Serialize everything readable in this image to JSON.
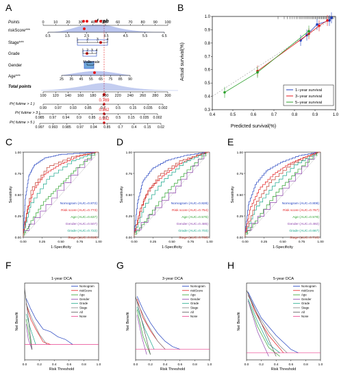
{
  "panels": {
    "A": "A",
    "B": "B",
    "C": "C",
    "D": "D",
    "E": "E",
    "F": "F",
    "G": "G",
    "H": "H"
  },
  "nomogram": {
    "title": "f cph",
    "rows": {
      "points": "Points",
      "riskscore": "riskScore***",
      "stage": "Stage***",
      "grade": "Grade",
      "gender": "Gender",
      "age": "Age***",
      "total": "Total points",
      "p1": "Pr( futime > 1 )",
      "p3": "Pr( futime > 3 )",
      "p5": "Pr( futime > 5 )"
    },
    "points_ticks": [
      "0",
      "10",
      "20",
      "30",
      "40",
      "50",
      "60",
      "70",
      "80",
      "90",
      "100"
    ],
    "riskscore_ticks": [
      "0.5",
      "1.5",
      "2.5",
      "3.5",
      "4.5",
      "5.5",
      "6.5"
    ],
    "stage_ticks": [
      "1",
      "2",
      "3",
      "4"
    ],
    "grade_ticks": [
      "1",
      "2",
      "3",
      "4"
    ],
    "gender_ticks": [
      "Male",
      "Female"
    ],
    "age_ticks": [
      "25",
      "35",
      "45",
      "55",
      "65",
      "75",
      "85",
      "90"
    ],
    "total_ticks": [
      "100",
      "120",
      "140",
      "160",
      "180",
      "200",
      "220",
      "240",
      "260",
      "280",
      "300"
    ],
    "p1_ticks": [
      "0.99",
      "0.97",
      "0.93",
      "0.85",
      "0.7",
      "0.5",
      "0.15",
      "0.035",
      "0.002"
    ],
    "p3_ticks": [
      "0.985",
      "0.97",
      "0.94",
      "0.9",
      "0.85",
      "0.7",
      "0.5",
      "0.15",
      "0.035",
      "0.002"
    ],
    "p5_ticks": [
      "0.997",
      "0.993",
      "0.985",
      "0.97",
      "0.94",
      "0.85",
      "0.7",
      "0.4",
      "0.15",
      "0.02"
    ],
    "p1_value": "0.769",
    "p3_value": "0.862",
    "p5_value": "0.952",
    "accent": "#e41a1c"
  },
  "chart_data": [
    {
      "panel": "B",
      "type": "line",
      "xlabel": "Predicted survival(%)",
      "ylabel": "Actual survival(%)",
      "xlim": [
        0.4,
        1.0
      ],
      "ylim": [
        0.3,
        1.0
      ],
      "xticks": [
        "0.4",
        "0.5",
        "0.6",
        "0.7",
        "0.8",
        "0.9",
        "1.0"
      ],
      "yticks": [
        "0.3",
        "0.4",
        "0.5",
        "0.6",
        "0.7",
        "0.8",
        "0.9",
        "1.0"
      ],
      "legend_position": "bottom-right",
      "series": [
        {
          "name": "1−year survival",
          "color": "#1f3fbf",
          "x": [
            0.83,
            0.86,
            0.91,
            0.97,
            0.98
          ],
          "y": [
            0.82,
            0.86,
            0.94,
            0.97,
            0.99
          ]
        },
        {
          "name": "3−year survival",
          "color": "#e41a1c",
          "x": [
            0.62,
            0.87,
            0.92,
            0.96
          ],
          "y": [
            0.59,
            0.87,
            0.93,
            0.97
          ]
        },
        {
          "name": "5−year survival",
          "color": "#2ca02c",
          "x": [
            0.46,
            0.62,
            0.87
          ],
          "y": [
            0.43,
            0.58,
            0.89
          ]
        }
      ]
    },
    {
      "panel": "C",
      "type": "line",
      "xlabel": "1-Specificity",
      "ylabel": "Sensitivity",
      "xticks": [
        "0.00",
        "0.25",
        "0.50",
        "0.75",
        "1.00"
      ],
      "yticks": [
        "0.00",
        "0.25",
        "0.50",
        "0.75",
        "1.00"
      ],
      "series": [
        {
          "name": "Nomogram (AUC=0.872)",
          "color": "#1f3fbf",
          "x": [
            0,
            0.03,
            0.08,
            0.15,
            0.3,
            0.5,
            1
          ],
          "y": [
            0,
            0.45,
            0.72,
            0.84,
            0.93,
            0.97,
            1
          ]
        },
        {
          "name": "Risk score (AUC=0.773)",
          "color": "#e41a1c",
          "x": [
            0,
            0.05,
            0.15,
            0.3,
            0.5,
            0.75,
            1
          ],
          "y": [
            0,
            0.28,
            0.55,
            0.74,
            0.85,
            0.95,
            1
          ]
        },
        {
          "name": "Age (AUC=0.637)",
          "color": "#2ca02c",
          "x": [
            0,
            0.1,
            0.3,
            0.5,
            0.7,
            1
          ],
          "y": [
            0,
            0.15,
            0.42,
            0.6,
            0.78,
            1
          ]
        },
        {
          "name": "Gender (AUC=0.507)",
          "color": "#8e44ad",
          "x": [
            0,
            0.45,
            1
          ],
          "y": [
            0,
            0.46,
            1
          ]
        },
        {
          "name": "Grade (AUC=0.722)",
          "color": "#17a589",
          "x": [
            0,
            0.1,
            0.35,
            0.7,
            1
          ],
          "y": [
            0,
            0.35,
            0.68,
            0.9,
            1
          ]
        },
        {
          "name": "Stage (AUC=0.819)",
          "color": "#c0392b",
          "x": [
            0,
            0.12,
            0.35,
            0.7,
            1
          ],
          "y": [
            0,
            0.55,
            0.82,
            0.95,
            1
          ]
        }
      ]
    },
    {
      "panel": "D",
      "type": "line",
      "xlabel": "1-Specificity",
      "ylabel": "Sensitivity",
      "xticks": [
        "0.00",
        "0.25",
        "0.50",
        "0.75",
        "1.00"
      ],
      "yticks": [
        "0.00",
        "0.25",
        "0.50",
        "0.75",
        "1.00"
      ],
      "series": [
        {
          "name": "Nomogram (AUC=0.828)",
          "color": "#1f3fbf",
          "x": [
            0,
            0.05,
            0.12,
            0.25,
            0.45,
            0.7,
            1
          ],
          "y": [
            0,
            0.4,
            0.65,
            0.8,
            0.9,
            0.96,
            1
          ]
        },
        {
          "name": "Risk score (AUC=0.754)",
          "color": "#e41a1c",
          "x": [
            0,
            0.08,
            0.2,
            0.4,
            0.6,
            0.8,
            1
          ],
          "y": [
            0,
            0.3,
            0.55,
            0.72,
            0.85,
            0.94,
            1
          ]
        },
        {
          "name": "Age (AUC=0.575)",
          "color": "#2ca02c",
          "x": [
            0,
            0.2,
            0.45,
            0.7,
            1
          ],
          "y": [
            0,
            0.22,
            0.52,
            0.75,
            1
          ]
        },
        {
          "name": "Gender (AUC=0.485)",
          "color": "#8e44ad",
          "x": [
            0,
            0.55,
            1
          ],
          "y": [
            0,
            0.52,
            1
          ]
        },
        {
          "name": "Grade (AUC=0.703)",
          "color": "#17a589",
          "x": [
            0,
            0.15,
            0.4,
            0.7,
            1
          ],
          "y": [
            0,
            0.35,
            0.65,
            0.88,
            1
          ]
        },
        {
          "name": "Stage (AUC=0.768)",
          "color": "#c0392b",
          "x": [
            0,
            0.15,
            0.35,
            0.65,
            1
          ],
          "y": [
            0,
            0.45,
            0.72,
            0.9,
            1
          ]
        }
      ]
    },
    {
      "panel": "E",
      "type": "line",
      "xlabel": "1-Specificity",
      "ylabel": "Sensitivity",
      "xticks": [
        "0.00",
        "0.25",
        "0.50",
        "0.75",
        "1.00"
      ],
      "yticks": [
        "0.00",
        "0.25",
        "0.50",
        "0.75",
        "1.00"
      ],
      "series": [
        {
          "name": "Nomogram (AUC=0.808)",
          "color": "#1f3fbf",
          "x": [
            0,
            0.05,
            0.15,
            0.3,
            0.5,
            0.75,
            1
          ],
          "y": [
            0,
            0.38,
            0.62,
            0.78,
            0.88,
            0.96,
            1
          ]
        },
        {
          "name": "Risk score (AUC=0.767)",
          "color": "#e41a1c",
          "x": [
            0,
            0.07,
            0.2,
            0.4,
            0.6,
            0.8,
            1
          ],
          "y": [
            0,
            0.32,
            0.56,
            0.74,
            0.86,
            0.94,
            1
          ]
        },
        {
          "name": "Age (AUC=0.578)",
          "color": "#2ca02c",
          "x": [
            0,
            0.2,
            0.45,
            0.7,
            1
          ],
          "y": [
            0,
            0.23,
            0.53,
            0.76,
            1
          ]
        },
        {
          "name": "Gender (AUC=0.492)",
          "color": "#8e44ad",
          "x": [
            0,
            0.5,
            1
          ],
          "y": [
            0,
            0.49,
            1
          ]
        },
        {
          "name": "Grade (AUC=0.667)",
          "color": "#17a589",
          "x": [
            0,
            0.15,
            0.4,
            0.7,
            1
          ],
          "y": [
            0,
            0.32,
            0.6,
            0.85,
            1
          ]
        },
        {
          "name": "Stage (AUC=0.710)",
          "color": "#c0392b",
          "x": [
            0,
            0.15,
            0.35,
            0.65,
            1
          ],
          "y": [
            0,
            0.38,
            0.64,
            0.86,
            1
          ]
        }
      ]
    },
    {
      "panel": "F",
      "type": "line",
      "title": "1-year DCA",
      "xlabel": "Risk Threshold",
      "ylabel": "Net Benefit",
      "xticks": [
        "0.0",
        "0.2",
        "0.4",
        "0.6",
        "0.8",
        "1.0"
      ],
      "series": [
        {
          "name": "Nomogram",
          "color": "#1f3fbf",
          "x": [
            0.02,
            0.08,
            0.15,
            0.25,
            0.35,
            0.45,
            0.55,
            0.65
          ],
          "y": [
            0.09,
            0.07,
            0.05,
            0.03,
            0.025,
            0.015,
            0.01,
            0.0
          ]
        },
        {
          "name": "riskScore",
          "color": "#e41a1c",
          "x": [
            0.02,
            0.08,
            0.15,
            0.25,
            0.35
          ],
          "y": [
            0.08,
            0.05,
            0.03,
            0.005,
            0.0
          ]
        },
        {
          "name": "Age",
          "color": "#2ca02c",
          "x": [
            0.02,
            0.06,
            0.1
          ],
          "y": [
            0.05,
            0.02,
            -0.01
          ]
        },
        {
          "name": "Gender",
          "color": "#8e44ad",
          "x": [
            0.02,
            0.05,
            0.1
          ],
          "y": [
            0.04,
            0.01,
            -0.01
          ]
        },
        {
          "name": "Grade",
          "color": "#17a589",
          "x": [
            0.02,
            0.08,
            0.15
          ],
          "y": [
            0.06,
            0.03,
            0.0
          ]
        },
        {
          "name": "Stage",
          "color": "#7f7f7f",
          "x": [
            0.02,
            0.1,
            0.2,
            0.3
          ],
          "y": [
            0.08,
            0.05,
            0.02,
            0.0
          ]
        },
        {
          "name": "All",
          "color": "#555555",
          "x": [
            0.0,
            0.1
          ],
          "y": [
            0.11,
            -0.01
          ]
        },
        {
          "name": "None",
          "color": "#e83e8c",
          "x": [
            0,
            1
          ],
          "y": [
            0,
            0
          ]
        }
      ]
    },
    {
      "panel": "G",
      "type": "line",
      "title": "3-year DCA",
      "xlabel": "Risk Threshold",
      "ylabel": "Net Benefit",
      "xticks": [
        "0.0",
        "0.2",
        "0.4",
        "0.6",
        "0.8",
        "1.0"
      ],
      "series": [
        {
          "name": "Nomogram",
          "color": "#1f3fbf",
          "x": [
            0.02,
            0.1,
            0.2,
            0.3,
            0.4,
            0.5,
            0.6
          ],
          "y": [
            0.2,
            0.15,
            0.1,
            0.06,
            0.03,
            0.01,
            0.0
          ]
        },
        {
          "name": "riskScore",
          "color": "#e41a1c",
          "x": [
            0.02,
            0.1,
            0.2,
            0.3,
            0.4
          ],
          "y": [
            0.19,
            0.12,
            0.07,
            0.03,
            0.0
          ]
        },
        {
          "name": "Age",
          "color": "#2ca02c",
          "x": [
            0.02,
            0.1,
            0.2
          ],
          "y": [
            0.15,
            0.05,
            -0.02
          ]
        },
        {
          "name": "Gender",
          "color": "#8e44ad",
          "x": [
            0.02,
            0.08,
            0.15
          ],
          "y": [
            0.13,
            0.05,
            -0.02
          ]
        },
        {
          "name": "Grade",
          "color": "#17a589",
          "x": [
            0.02,
            0.12,
            0.25
          ],
          "y": [
            0.16,
            0.08,
            0.0
          ]
        },
        {
          "name": "Stage",
          "color": "#7f7f7f",
          "x": [
            0.02,
            0.15,
            0.3,
            0.4
          ],
          "y": [
            0.18,
            0.1,
            0.03,
            0.0
          ]
        },
        {
          "name": "All",
          "color": "#555555",
          "x": [
            0.0,
            0.2
          ],
          "y": [
            0.2,
            -0.02
          ]
        },
        {
          "name": "None",
          "color": "#e83e8c",
          "x": [
            0,
            1
          ],
          "y": [
            0,
            0
          ]
        }
      ]
    },
    {
      "panel": "H",
      "type": "line",
      "title": "5-year DCA",
      "xlabel": "Risk Threshold",
      "ylabel": "Net Benefit",
      "xticks": [
        "0.0",
        "0.2",
        "0.4",
        "0.6",
        "0.8",
        "1.0"
      ],
      "series": [
        {
          "name": "Nomogram",
          "color": "#1f3fbf",
          "x": [
            0.02,
            0.1,
            0.2,
            0.3,
            0.4,
            0.5,
            0.6,
            0.7
          ],
          "y": [
            0.35,
            0.28,
            0.2,
            0.15,
            0.1,
            0.06,
            0.02,
            0.0
          ]
        },
        {
          "name": "riskScore",
          "color": "#e41a1c",
          "x": [
            0.02,
            0.1,
            0.2,
            0.3,
            0.4,
            0.5
          ],
          "y": [
            0.34,
            0.25,
            0.17,
            0.1,
            0.05,
            0.0
          ]
        },
        {
          "name": "Age",
          "color": "#2ca02c",
          "x": [
            0.02,
            0.15,
            0.3,
            0.45
          ],
          "y": [
            0.3,
            0.15,
            0.03,
            -0.02
          ]
        },
        {
          "name": "Gender",
          "color": "#8e44ad",
          "x": [
            0.02,
            0.15,
            0.3
          ],
          "y": [
            0.3,
            0.12,
            -0.02
          ]
        },
        {
          "name": "Grade",
          "color": "#17a589",
          "x": [
            0.02,
            0.15,
            0.3,
            0.45
          ],
          "y": [
            0.31,
            0.18,
            0.05,
            0.0
          ]
        },
        {
          "name": "Stage",
          "color": "#7f7f7f",
          "x": [
            0.02,
            0.15,
            0.3,
            0.45,
            0.55
          ],
          "y": [
            0.33,
            0.22,
            0.12,
            0.04,
            0.0
          ]
        },
        {
          "name": "All",
          "color": "#555555",
          "x": [
            0.0,
            0.4
          ],
          "y": [
            0.36,
            -0.02
          ]
        },
        {
          "name": "None",
          "color": "#e83e8c",
          "x": [
            0,
            1
          ],
          "y": [
            0,
            0
          ]
        }
      ]
    }
  ]
}
